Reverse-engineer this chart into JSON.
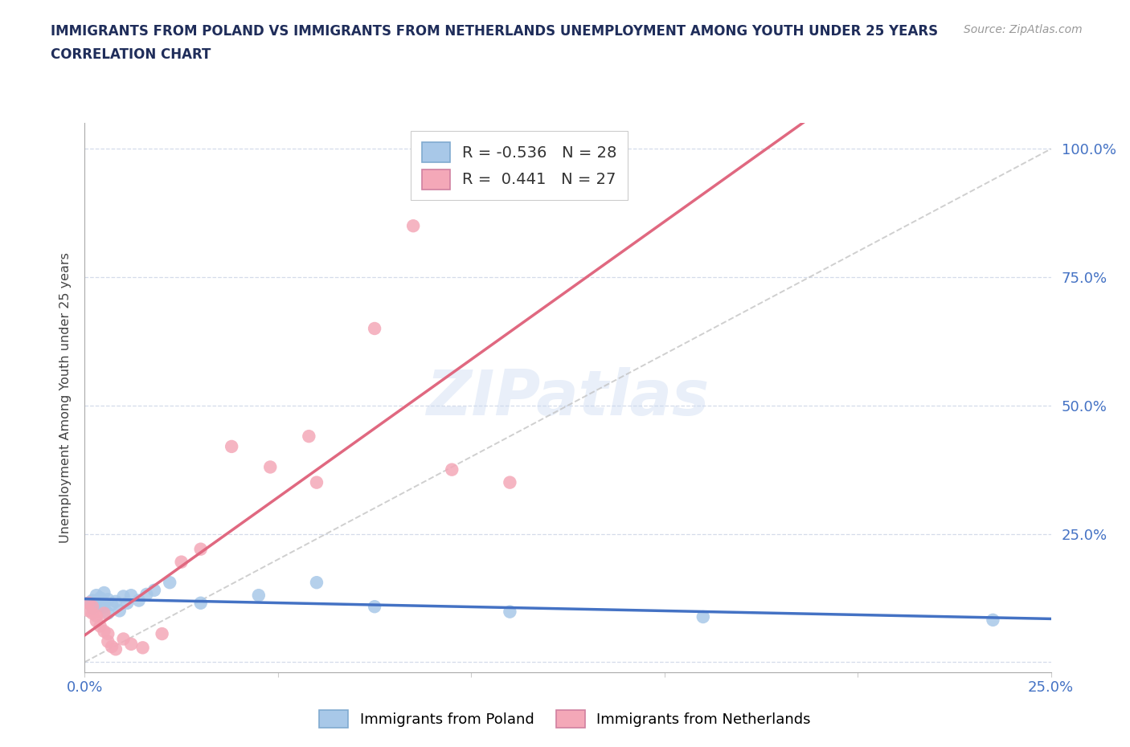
{
  "title_line1": "IMMIGRANTS FROM POLAND VS IMMIGRANTS FROM NETHERLANDS UNEMPLOYMENT AMONG YOUTH UNDER 25 YEARS",
  "title_line2": "CORRELATION CHART",
  "source": "Source: ZipAtlas.com",
  "ylabel": "Unemployment Among Youth under 25 years",
  "xlim": [
    0.0,
    0.25
  ],
  "ylim": [
    -0.02,
    1.05
  ],
  "poland_x": [
    0.001,
    0.002,
    0.002,
    0.003,
    0.003,
    0.004,
    0.004,
    0.005,
    0.005,
    0.006,
    0.006,
    0.007,
    0.008,
    0.009,
    0.01,
    0.011,
    0.012,
    0.014,
    0.016,
    0.018,
    0.022,
    0.03,
    0.045,
    0.06,
    0.075,
    0.11,
    0.16,
    0.235
  ],
  "poland_y": [
    0.115,
    0.12,
    0.105,
    0.13,
    0.118,
    0.125,
    0.11,
    0.135,
    0.108,
    0.122,
    0.095,
    0.112,
    0.118,
    0.1,
    0.128,
    0.115,
    0.13,
    0.12,
    0.132,
    0.14,
    0.155,
    0.115,
    0.13,
    0.155,
    0.108,
    0.098,
    0.088,
    0.082
  ],
  "netherlands_x": [
    0.001,
    0.001,
    0.002,
    0.002,
    0.003,
    0.003,
    0.004,
    0.005,
    0.005,
    0.006,
    0.006,
    0.007,
    0.008,
    0.01,
    0.012,
    0.015,
    0.02,
    0.025,
    0.03,
    0.038,
    0.048,
    0.058,
    0.06,
    0.075,
    0.085,
    0.095,
    0.11
  ],
  "netherlands_y": [
    0.115,
    0.1,
    0.108,
    0.095,
    0.09,
    0.08,
    0.07,
    0.095,
    0.06,
    0.055,
    0.04,
    0.03,
    0.025,
    0.045,
    0.035,
    0.028,
    0.055,
    0.195,
    0.22,
    0.42,
    0.38,
    0.44,
    0.35,
    0.65,
    0.85,
    0.375,
    0.35
  ],
  "poland_color": "#a8c8e8",
  "netherlands_color": "#f4a8b8",
  "poland_line_color": "#4472c4",
  "netherlands_line_color": "#e06880",
  "diag_line_color": "#c0c0c0",
  "R_poland": -0.536,
  "N_poland": 28,
  "R_netherlands": 0.441,
  "N_netherlands": 27,
  "legend_poland": "Immigrants from Poland",
  "legend_netherlands": "Immigrants from Netherlands",
  "watermark": "ZIPatlas",
  "background_color": "#ffffff",
  "grid_color": "#d0d8e8",
  "axis_label_color": "#4472c4",
  "title_color": "#1f2d5a",
  "right_yticks": [
    0.25,
    0.5,
    0.75,
    1.0
  ],
  "right_ytick_labels": [
    "25.0%",
    "50.0%",
    "75.0%",
    "100.0%"
  ]
}
